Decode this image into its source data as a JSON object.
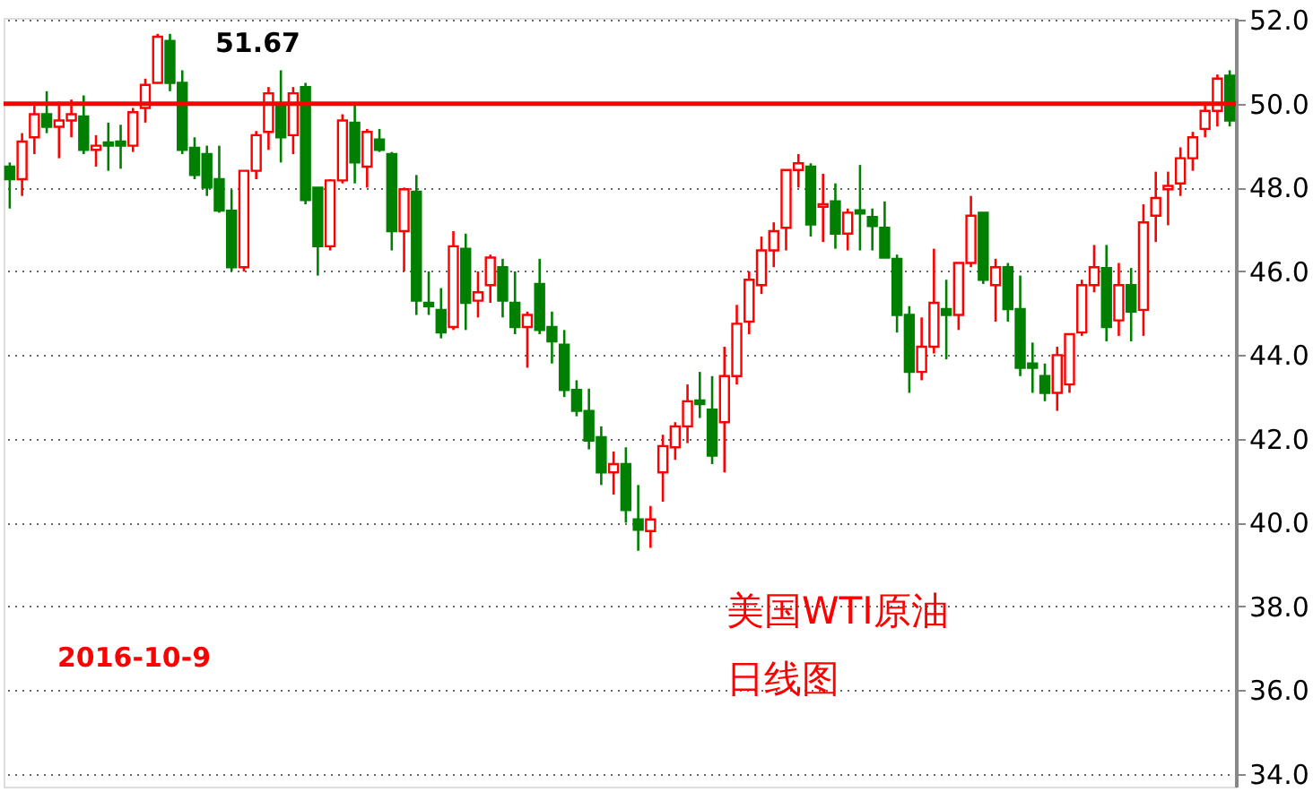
{
  "chart_data": {
    "type": "candlestick",
    "categories": [
      null,
      null,
      null,
      null,
      null,
      null,
      null,
      null,
      null,
      null,
      null,
      null,
      null,
      null,
      null,
      null,
      null,
      null,
      null,
      null,
      null,
      null,
      null,
      null,
      null,
      null,
      null,
      null,
      null,
      null,
      null,
      null,
      null,
      null,
      null,
      null,
      null,
      null,
      null,
      null,
      null,
      null,
      null,
      null,
      null,
      null,
      null,
      null,
      null,
      null,
      null,
      null,
      null,
      null,
      null,
      null,
      null,
      null,
      null,
      null,
      null,
      null,
      null,
      null,
      null,
      null,
      null,
      null,
      null,
      null,
      null,
      null,
      null,
      null,
      null,
      null,
      null,
      null,
      null,
      null,
      null,
      null,
      null,
      null,
      null,
      null,
      null,
      null,
      null,
      null,
      null,
      null,
      null,
      null,
      null,
      null,
      null,
      null,
      null,
      null
    ],
    "ohlc": [
      [
        48.5,
        48.6,
        47.5,
        48.2
      ],
      [
        48.2,
        49.3,
        47.8,
        49.1
      ],
      [
        49.2,
        49.95,
        48.8,
        49.75
      ],
      [
        49.75,
        50.3,
        49.3,
        49.45
      ],
      [
        49.45,
        50.05,
        48.7,
        49.6
      ],
      [
        49.6,
        50.1,
        49.2,
        49.75
      ],
      [
        49.7,
        50.2,
        48.8,
        48.9
      ],
      [
        48.9,
        49.25,
        48.5,
        49.0
      ],
      [
        49.08,
        49.55,
        48.4,
        49.0
      ],
      [
        49.1,
        49.5,
        48.45,
        49.0
      ],
      [
        49.0,
        49.9,
        48.85,
        49.8
      ],
      [
        49.9,
        50.6,
        49.55,
        50.45
      ],
      [
        50.5,
        51.67,
        50.5,
        51.6
      ],
      [
        51.5,
        51.67,
        50.3,
        50.5
      ],
      [
        50.5,
        50.8,
        48.8,
        48.9
      ],
      [
        48.95,
        49.2,
        48.2,
        48.3
      ],
      [
        48.8,
        49.0,
        47.8,
        48.0
      ],
      [
        48.2,
        49.0,
        47.4,
        47.45
      ],
      [
        47.45,
        47.95,
        46.0,
        46.1
      ],
      [
        46.1,
        48.4,
        46.0,
        48.4
      ],
      [
        48.4,
        49.35,
        48.2,
        49.25
      ],
      [
        49.33,
        50.4,
        48.9,
        50.25
      ],
      [
        50.0,
        50.8,
        48.6,
        49.2
      ],
      [
        49.25,
        50.4,
        48.8,
        50.25
      ],
      [
        50.4,
        50.5,
        47.6,
        47.7
      ],
      [
        48.0,
        48.0,
        45.9,
        46.6
      ],
      [
        46.6,
        48.2,
        46.5,
        48.17
      ],
      [
        48.17,
        49.75,
        48.1,
        49.6
      ],
      [
        49.55,
        49.96,
        48.1,
        48.6
      ],
      [
        48.5,
        49.4,
        48.0,
        49.33
      ],
      [
        49.15,
        49.4,
        48.85,
        48.9
      ],
      [
        48.8,
        48.85,
        46.5,
        46.96
      ],
      [
        46.96,
        48.0,
        46.0,
        47.96
      ],
      [
        47.9,
        48.3,
        44.96,
        45.3
      ],
      [
        45.25,
        46.0,
        44.96,
        45.17
      ],
      [
        45.08,
        45.6,
        44.4,
        44.54
      ],
      [
        44.67,
        46.96,
        44.6,
        46.6
      ],
      [
        46.54,
        46.9,
        44.6,
        45.25
      ],
      [
        45.3,
        46.0,
        44.9,
        45.5
      ],
      [
        45.67,
        46.4,
        45.25,
        46.33
      ],
      [
        46.1,
        46.3,
        44.9,
        45.3
      ],
      [
        45.25,
        46.0,
        44.5,
        44.67
      ],
      [
        44.67,
        45.04,
        43.7,
        44.96
      ],
      [
        45.7,
        46.3,
        44.5,
        44.6
      ],
      [
        44.67,
        45.04,
        43.8,
        44.33
      ],
      [
        44.25,
        44.6,
        43.0,
        43.17
      ],
      [
        43.17,
        43.4,
        42.54,
        42.67
      ],
      [
        42.67,
        43.2,
        41.75,
        41.96
      ],
      [
        42.04,
        42.3,
        40.9,
        41.2
      ],
      [
        41.2,
        41.7,
        40.67,
        41.4
      ],
      [
        41.4,
        41.8,
        40.0,
        40.3
      ],
      [
        40.08,
        40.9,
        39.33,
        39.83
      ],
      [
        39.8,
        40.4,
        39.4,
        40.08
      ],
      [
        41.2,
        42.1,
        40.5,
        41.83
      ],
      [
        41.8,
        42.4,
        41.5,
        42.3
      ],
      [
        42.3,
        43.3,
        41.9,
        42.9
      ],
      [
        42.92,
        43.6,
        42.5,
        42.83
      ],
      [
        42.7,
        43.5,
        41.4,
        41.6
      ],
      [
        42.4,
        44.2,
        41.2,
        43.5
      ],
      [
        43.5,
        45.2,
        43.3,
        44.75
      ],
      [
        44.8,
        46.0,
        44.5,
        45.8
      ],
      [
        45.67,
        46.83,
        45.46,
        46.5
      ],
      [
        46.5,
        47.17,
        46.1,
        46.96
      ],
      [
        47.04,
        48.42,
        46.5,
        48.42
      ],
      [
        48.42,
        48.8,
        48.0,
        48.58
      ],
      [
        48.5,
        48.58,
        46.83,
        47.12
      ],
      [
        47.54,
        48.33,
        46.7,
        47.6
      ],
      [
        47.67,
        48.1,
        46.54,
        46.9
      ],
      [
        46.9,
        47.5,
        46.5,
        47.4
      ],
      [
        47.46,
        48.54,
        46.5,
        47.38
      ],
      [
        47.3,
        47.5,
        46.5,
        47.08
      ],
      [
        47.04,
        47.67,
        46.33,
        46.33
      ],
      [
        46.3,
        46.4,
        44.54,
        44.96
      ],
      [
        44.96,
        45.17,
        43.1,
        43.6
      ],
      [
        43.6,
        44.9,
        43.4,
        44.2
      ],
      [
        44.2,
        46.54,
        44.04,
        45.25
      ],
      [
        45.1,
        45.8,
        43.9,
        44.96
      ],
      [
        44.96,
        46.2,
        44.6,
        46.2
      ],
      [
        46.2,
        47.8,
        46.1,
        47.33
      ],
      [
        47.4,
        47.4,
        45.7,
        45.8
      ],
      [
        45.67,
        46.3,
        44.8,
        46.1
      ],
      [
        46.1,
        46.2,
        44.8,
        45.1
      ],
      [
        45.1,
        45.9,
        43.5,
        43.7
      ],
      [
        43.8,
        44.3,
        43.1,
        43.7
      ],
      [
        43.5,
        43.8,
        42.9,
        43.1
      ],
      [
        43.1,
        44.2,
        42.67,
        44.0
      ],
      [
        43.3,
        44.5,
        43.1,
        44.5
      ],
      [
        44.54,
        45.8,
        44.46,
        45.67
      ],
      [
        45.67,
        46.63,
        45.5,
        46.1
      ],
      [
        46.08,
        46.63,
        44.33,
        44.67
      ],
      [
        44.83,
        46.2,
        44.46,
        45.67
      ],
      [
        45.67,
        46.08,
        44.33,
        45.04
      ],
      [
        45.08,
        47.6,
        44.46,
        47.17
      ],
      [
        47.33,
        48.38,
        46.7,
        47.75
      ],
      [
        47.96,
        48.38,
        47.1,
        48.04
      ],
      [
        48.1,
        48.96,
        47.8,
        48.7
      ],
      [
        48.7,
        49.33,
        48.4,
        49.2
      ],
      [
        49.4,
        50.04,
        49.2,
        49.83
      ],
      [
        49.83,
        50.7,
        49.46,
        50.6
      ],
      [
        50.67,
        50.8,
        49.46,
        49.6
      ]
    ],
    "colors": [
      "#008000",
      "#ff0000",
      "#ff0000",
      "#008000",
      "#ff0000",
      "#ff0000",
      "#008000",
      "#ff0000",
      "#008000",
      "#008000",
      "#ff0000",
      "#ff0000",
      "#ff0000",
      "#008000",
      "#008000",
      "#008000",
      "#008000",
      "#008000",
      "#008000",
      "#ff0000",
      "#ff0000",
      "#ff0000",
      "#008000",
      "#ff0000",
      "#008000",
      "#008000",
      "#ff0000",
      "#ff0000",
      "#008000",
      "#ff0000",
      "#008000",
      "#008000",
      "#ff0000",
      "#008000",
      "#008000",
      "#008000",
      "#ff0000",
      "#008000",
      "#ff0000",
      "#ff0000",
      "#008000",
      "#008000",
      "#ff0000",
      "#008000",
      "#008000",
      "#008000",
      "#008000",
      "#008000",
      "#008000",
      "#ff0000",
      "#008000",
      "#008000",
      "#ff0000",
      "#ff0000",
      "#ff0000",
      "#ff0000",
      "#008000",
      "#008000",
      "#ff0000",
      "#ff0000",
      "#ff0000",
      "#ff0000",
      "#ff0000",
      "#ff0000",
      "#ff0000",
      "#008000",
      "#ff0000",
      "#008000",
      "#ff0000",
      "#008000",
      "#008000",
      "#008000",
      "#008000",
      "#008000",
      "#ff0000",
      "#ff0000",
      "#008000",
      "#ff0000",
      "#ff0000",
      "#008000",
      "#ff0000",
      "#008000",
      "#008000",
      "#008000",
      "#008000",
      "#ff0000",
      "#ff0000",
      "#ff0000",
      "#ff0000",
      "#008000",
      "#ff0000",
      "#008000",
      "#ff0000",
      "#ff0000",
      "#ff0000",
      "#ff0000",
      "#ff0000",
      "#ff0000",
      "#ff0000",
      "#008000"
    ],
    "ylim": [
      33.7,
      52.05
    ],
    "yticks": [
      {
        "value": 34,
        "label": "34.0"
      },
      {
        "value": 36,
        "label": "36.0"
      },
      {
        "value": 38,
        "label": "38.0"
      },
      {
        "value": 40,
        "label": "40.0"
      },
      {
        "value": 42,
        "label": "42.0"
      },
      {
        "value": 44,
        "label": "44.0"
      },
      {
        "value": 46,
        "label": "46.0"
      },
      {
        "value": 48,
        "label": "48.0"
      },
      {
        "value": 50,
        "label": "50.0"
      },
      {
        "value": 52,
        "label": "52.0"
      }
    ],
    "grid": "y",
    "tick_labels": "y",
    "ref_lines": [
      {
        "axis": "y",
        "value": 50,
        "color": "#ff0000"
      }
    ],
    "annotations": [
      "51.67",
      "美国WTI原油",
      "日线图",
      "2016-10-9"
    ]
  }
}
